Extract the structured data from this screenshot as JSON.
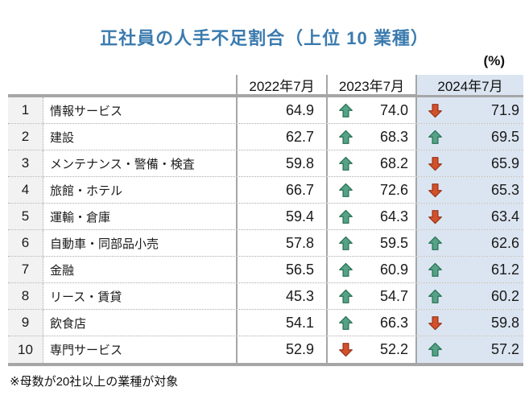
{
  "chart_data": {
    "type": "table",
    "title": "正社員の人手不足割合（上位 10 業種）",
    "unit_label": "(%)",
    "columns": [
      "2022年7月",
      "2023年7月",
      "2024年7月"
    ],
    "note": "※母数が20社以上の業種が対象",
    "rows": [
      {
        "rank": "1",
        "industry": "情報サービス",
        "v2022": "64.9",
        "t2023": "up",
        "v2023": "74.0",
        "t2024": "down",
        "v2024": "71.9"
      },
      {
        "rank": "2",
        "industry": "建設",
        "v2022": "62.7",
        "t2023": "up",
        "v2023": "68.3",
        "t2024": "up",
        "v2024": "69.5"
      },
      {
        "rank": "3",
        "industry": "メンテナンス・警備・検査",
        "v2022": "59.8",
        "t2023": "up",
        "v2023": "68.2",
        "t2024": "down",
        "v2024": "65.9"
      },
      {
        "rank": "4",
        "industry": "旅館・ホテル",
        "v2022": "66.7",
        "t2023": "up",
        "v2023": "72.6",
        "t2024": "down",
        "v2024": "65.3"
      },
      {
        "rank": "5",
        "industry": "運輸・倉庫",
        "v2022": "59.4",
        "t2023": "up",
        "v2023": "64.3",
        "t2024": "down",
        "v2024": "63.4"
      },
      {
        "rank": "6",
        "industry": "自動車・同部品小売",
        "v2022": "57.8",
        "t2023": "up",
        "v2023": "59.5",
        "t2024": "up",
        "v2024": "62.6"
      },
      {
        "rank": "7",
        "industry": "金融",
        "v2022": "56.5",
        "t2023": "up",
        "v2023": "60.9",
        "t2024": "up",
        "v2024": "61.2"
      },
      {
        "rank": "8",
        "industry": "リース・賃貸",
        "v2022": "45.3",
        "t2023": "up",
        "v2023": "54.7",
        "t2024": "up",
        "v2024": "60.2"
      },
      {
        "rank": "9",
        "industry": "飲食店",
        "v2022": "54.1",
        "t2023": "up",
        "v2023": "66.3",
        "t2024": "down",
        "v2024": "59.8"
      },
      {
        "rank": "10",
        "industry": "専門サービス",
        "v2022": "52.9",
        "t2023": "down",
        "v2023": "52.2",
        "t2024": "up",
        "v2024": "57.2"
      }
    ]
  },
  "colors": {
    "title_color": "#3B7BAE",
    "up_arrow": "#55A287",
    "up_arrow_stroke": "#256F52",
    "down_arrow": "#D4502B",
    "down_arrow_stroke": "#93341A",
    "highlight_bg": "#DBE5F1",
    "rank_bg": "#F2F2F2",
    "border_color": "#A6A6A6",
    "dotted_color": "#ABABAB"
  },
  "icons": {
    "up": "up-arrow-icon",
    "down": "down-arrow-icon"
  }
}
